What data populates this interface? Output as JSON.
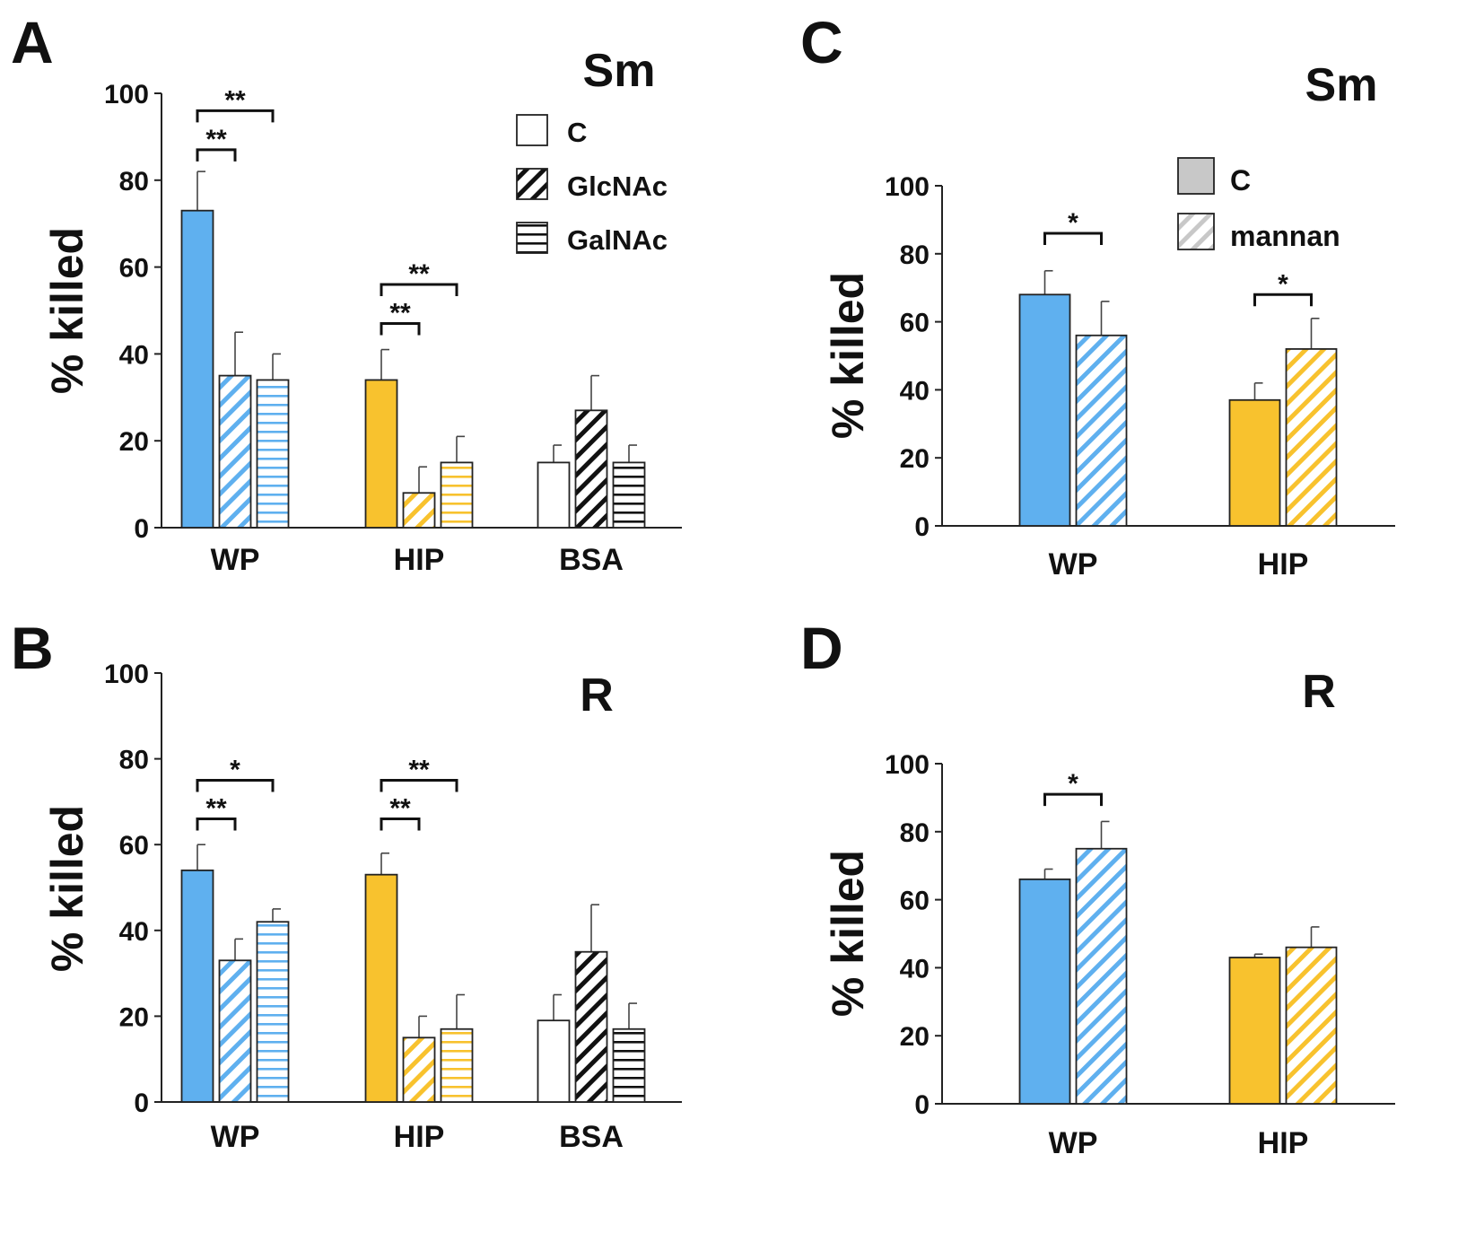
{
  "colors": {
    "blue": "#5fb0ef",
    "yellow": "#f8c22e",
    "gray": "#c8c8c8",
    "white": "#ffffff",
    "black": "#111111"
  },
  "chart_data": [
    {
      "panel": "A",
      "title": "Sm",
      "type": "bar",
      "ylabel": "% killed",
      "ylim": [
        0,
        100
      ],
      "yticks": [
        "0",
        "20",
        "40",
        "60",
        "80",
        "100"
      ],
      "categories": [
        "WP",
        "HIP",
        "BSA"
      ],
      "category_colors": [
        "blue",
        "yellow",
        "white"
      ],
      "series": [
        {
          "name": "C",
          "pattern": "solid",
          "values": [
            73,
            34,
            15
          ],
          "errors": [
            9,
            7,
            4
          ]
        },
        {
          "name": "GlcNAc",
          "pattern": "diagonal",
          "values": [
            35,
            8,
            27
          ],
          "errors": [
            10,
            6,
            8
          ]
        },
        {
          "name": "GalNAc",
          "pattern": "horizontal",
          "values": [
            34,
            15,
            15
          ],
          "errors": [
            6,
            6,
            4
          ]
        }
      ],
      "legend": {
        "position": "top-right",
        "labels": [
          "C",
          "GlcNAc",
          "GalNAc"
        ]
      },
      "significance": [
        {
          "category": 0,
          "from": 0,
          "to": 1,
          "label": "**",
          "level": 87
        },
        {
          "category": 0,
          "from": 0,
          "to": 2,
          "label": "**",
          "level": 96
        },
        {
          "category": 1,
          "from": 0,
          "to": 1,
          "label": "**",
          "level": 47
        },
        {
          "category": 1,
          "from": 0,
          "to": 2,
          "label": "**",
          "level": 56
        }
      ]
    },
    {
      "panel": "B",
      "title": "R",
      "type": "bar",
      "ylabel": "% killed",
      "ylim": [
        0,
        100
      ],
      "yticks": [
        "0",
        "20",
        "40",
        "60",
        "80",
        "100"
      ],
      "categories": [
        "WP",
        "HIP",
        "BSA"
      ],
      "category_colors": [
        "blue",
        "yellow",
        "white"
      ],
      "series": [
        {
          "name": "C",
          "pattern": "solid",
          "values": [
            54,
            53,
            19
          ],
          "errors": [
            6,
            5,
            6
          ]
        },
        {
          "name": "GlcNAc",
          "pattern": "diagonal",
          "values": [
            33,
            15,
            35
          ],
          "errors": [
            5,
            5,
            11
          ]
        },
        {
          "name": "GalNAc",
          "pattern": "horizontal",
          "values": [
            42,
            17,
            17
          ],
          "errors": [
            3,
            8,
            6
          ]
        }
      ],
      "significance": [
        {
          "category": 0,
          "from": 0,
          "to": 1,
          "label": "**",
          "level": 66
        },
        {
          "category": 0,
          "from": 0,
          "to": 2,
          "label": "*",
          "level": 75
        },
        {
          "category": 1,
          "from": 0,
          "to": 1,
          "label": "**",
          "level": 66
        },
        {
          "category": 1,
          "from": 0,
          "to": 2,
          "label": "**",
          "level": 75
        }
      ]
    },
    {
      "panel": "C",
      "title": "Sm",
      "type": "bar",
      "ylabel": "% killed",
      "ylim": [
        0,
        100
      ],
      "yticks": [
        "0",
        "20",
        "40",
        "60",
        "80",
        "100"
      ],
      "categories": [
        "WP",
        "HIP"
      ],
      "category_colors": [
        "blue",
        "yellow"
      ],
      "series": [
        {
          "name": "C",
          "pattern": "solid",
          "values": [
            68,
            37
          ],
          "errors": [
            7,
            5
          ]
        },
        {
          "name": "mannan",
          "pattern": "diagonal",
          "values": [
            56,
            52
          ],
          "errors": [
            10,
            9
          ]
        }
      ],
      "legend": {
        "position": "top-right",
        "labels": [
          "C",
          "mannan"
        ]
      },
      "significance": [
        {
          "category": 0,
          "from": 0,
          "to": 1,
          "label": "*",
          "level": 86
        },
        {
          "category": 1,
          "from": 0,
          "to": 1,
          "label": "*",
          "level": 68
        }
      ]
    },
    {
      "panel": "D",
      "title": "R",
      "type": "bar",
      "ylabel": "% killed",
      "ylim": [
        0,
        100
      ],
      "yticks": [
        "0",
        "20",
        "40",
        "60",
        "80",
        "100"
      ],
      "categories": [
        "WP",
        "HIP"
      ],
      "category_colors": [
        "blue",
        "yellow"
      ],
      "series": [
        {
          "name": "C",
          "pattern": "solid",
          "values": [
            66,
            43
          ],
          "errors": [
            3,
            1
          ]
        },
        {
          "name": "mannan",
          "pattern": "diagonal",
          "values": [
            75,
            46
          ],
          "errors": [
            8,
            6
          ]
        }
      ],
      "significance": [
        {
          "category": 0,
          "from": 0,
          "to": 1,
          "label": "*",
          "level": 91
        }
      ]
    }
  ]
}
